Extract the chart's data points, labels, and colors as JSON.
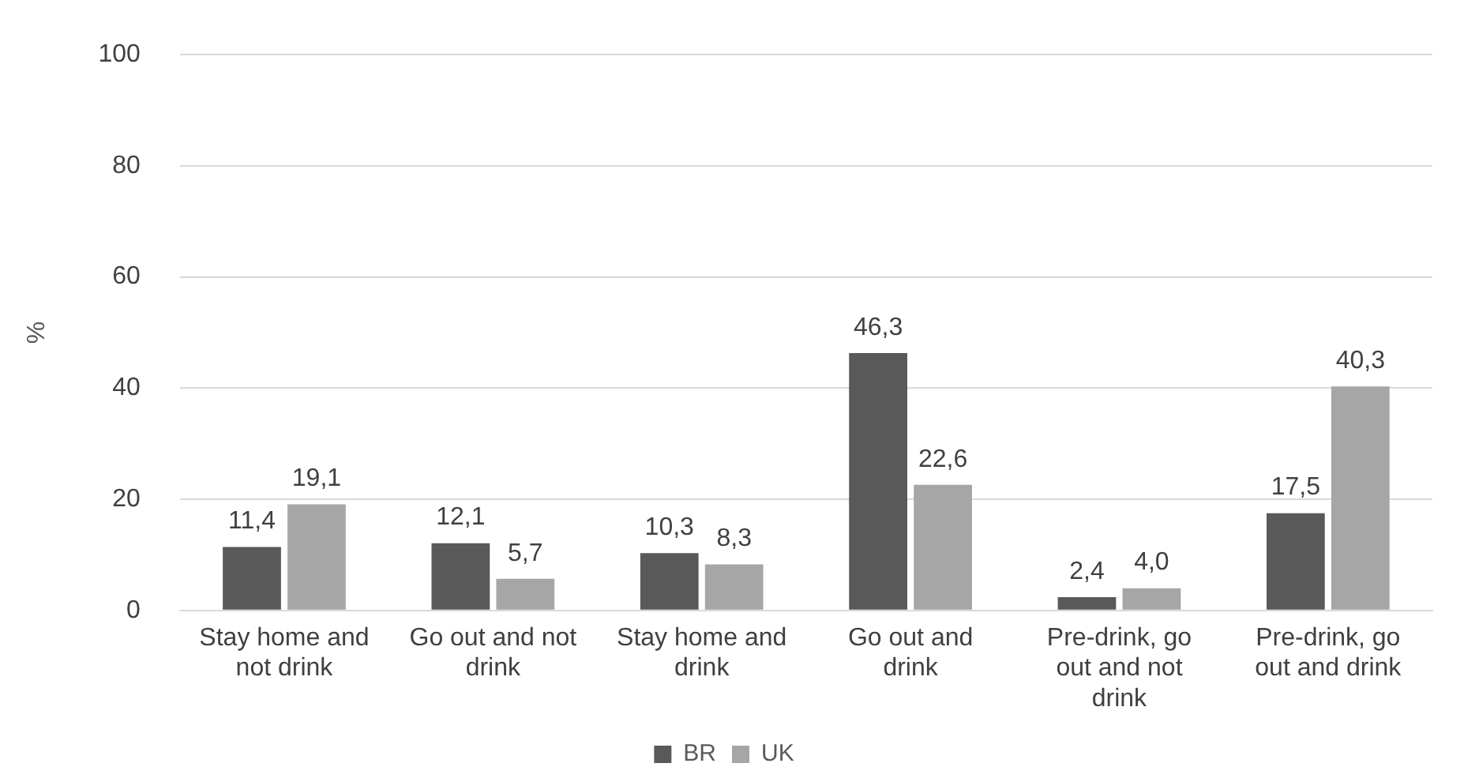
{
  "chart_data": {
    "type": "bar",
    "ylabel": "%",
    "categories": [
      "Stay home and not drink",
      "Go out and not drink",
      "Stay home and drink",
      "Go out and drink",
      "Pre-drink, go out and not drink",
      "Pre-drink, go out and drink"
    ],
    "series": [
      {
        "name": "BR",
        "color": "#595959",
        "values": [
          11.4,
          12.1,
          10.3,
          46.3,
          2.4,
          17.5
        ],
        "value_labels": [
          "11,4",
          "12,1",
          "10,3",
          "46,3",
          "2,4",
          "17,5"
        ]
      },
      {
        "name": "UK",
        "color": "#a6a6a6",
        "values": [
          19.1,
          5.7,
          8.3,
          22.6,
          4.0,
          40.3
        ],
        "value_labels": [
          "19,1",
          "5,7",
          "8,3",
          "22,6",
          "4,0",
          "40,3"
        ]
      }
    ],
    "ylim": [
      0,
      100
    ],
    "yticks": [
      0,
      20,
      40,
      60,
      80,
      100
    ],
    "grid": "y",
    "legend": "bottom"
  }
}
